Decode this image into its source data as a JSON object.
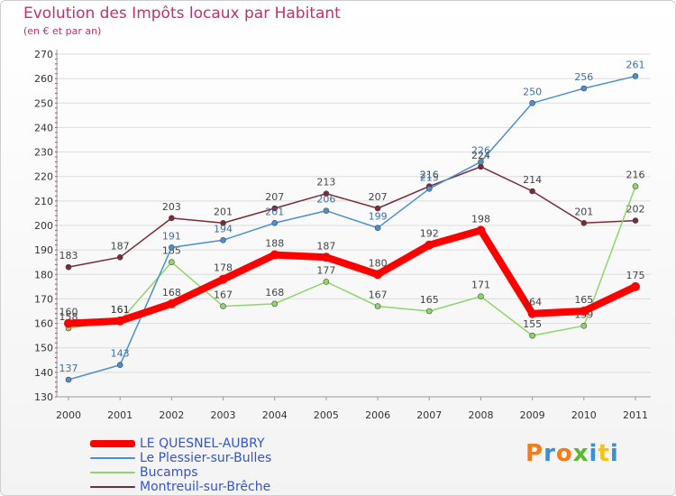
{
  "chart_data": {
    "type": "line",
    "title": "Evolution des Impôts locaux par Habitant",
    "subtitle": "(en € et par an)",
    "x": [
      "2000",
      "2001",
      "2002",
      "2003",
      "2004",
      "2005",
      "2006",
      "2007",
      "2008",
      "2009",
      "2010",
      "2011"
    ],
    "ylim": [
      130,
      270
    ],
    "yticks": [
      130,
      140,
      150,
      160,
      170,
      180,
      190,
      200,
      210,
      220,
      230,
      240,
      250,
      260,
      270
    ],
    "series": [
      {
        "name": "Montreuil-sur-Brêche",
        "color": "#7a2a36",
        "values": [
          183,
          187,
          203,
          201,
          207,
          213,
          207,
          216,
          224,
          214,
          201,
          202
        ]
      },
      {
        "name": "Bucamps",
        "color": "#8fd66a",
        "values": [
          158,
          161,
          185,
          167,
          168,
          177,
          167,
          165,
          171,
          155,
          159,
          216
        ]
      },
      {
        "name": "Le Plessier-sur-Bulles",
        "color": "#4a8fd0",
        "values": [
          137,
          143,
          191,
          194,
          201,
          206,
          199,
          215,
          226,
          250,
          256,
          261
        ]
      },
      {
        "name": "LE QUESNEL-AUBRY",
        "color": "#ff0000",
        "values": [
          160,
          161,
          168,
          178,
          188,
          187,
          180,
          192,
          198,
          164,
          165,
          175
        ]
      }
    ]
  },
  "legend": [
    {
      "label": "LE QUESNEL-AUBRY",
      "color": "#ff0000"
    },
    {
      "label": "Le Plessier-sur-Bulles",
      "color": "#4a8fd0"
    },
    {
      "label": "Bucamps",
      "color": "#8fd66a"
    },
    {
      "label": "Montreuil-sur-Brêche",
      "color": "#7a2a36"
    }
  ],
  "brand": {
    "letters": [
      "P",
      "r",
      "o",
      "x",
      "i",
      "t",
      "i"
    ],
    "colors": [
      "#f07d1a",
      "#3a8fd8",
      "#f07d1a",
      "#59b82e",
      "#3a8fd8",
      "#f0c419",
      "#3a8fd8"
    ]
  }
}
